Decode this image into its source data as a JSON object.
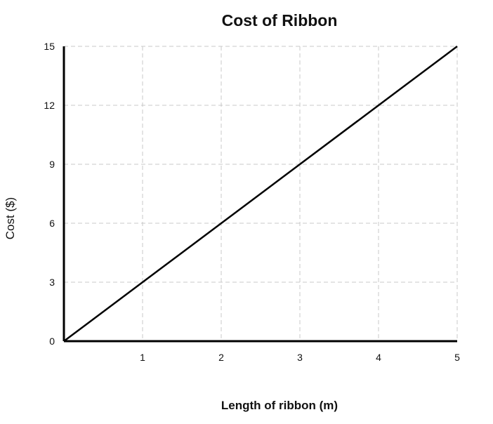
{
  "chart_data": {
    "type": "line",
    "title": "Cost of Ribbon",
    "xlabel": "Length of ribbon (m)",
    "ylabel": "Cost ($)",
    "xlim": [
      0,
      5
    ],
    "ylim": [
      0,
      15
    ],
    "x_ticks": [
      1,
      2,
      3,
      4,
      5
    ],
    "y_ticks": [
      0,
      3,
      6,
      9,
      12,
      15
    ],
    "grid": true,
    "legend": "none",
    "series": [
      {
        "x": [
          0,
          5
        ],
        "y": [
          0,
          15
        ],
        "color": "#000000"
      }
    ]
  }
}
